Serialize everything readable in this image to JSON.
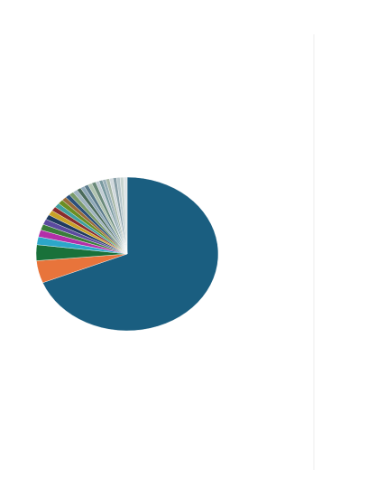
{
  "chart_data": {
    "type": "pie",
    "categories": [
      null,
      null,
      null,
      null,
      null,
      null,
      null,
      null,
      null,
      null,
      null,
      null,
      null,
      null,
      null,
      null,
      null,
      null,
      null,
      null,
      null,
      null,
      null,
      null,
      null,
      null,
      null,
      null,
      null,
      null
    ],
    "values": [
      66,
      4.5,
      3.2,
      1.6,
      1.4,
      1.2,
      1.1,
      1.0,
      1.0,
      0.9,
      0.9,
      0.9,
      0.8,
      0.8,
      0.8,
      0.8,
      0.7,
      0.7,
      0.7,
      0.7,
      0.7,
      0.6,
      0.6,
      0.6,
      0.6,
      0.6,
      0.6,
      0.6,
      0.6,
      0.6
    ],
    "colors": [
      "#1a5e80",
      "#e8743b",
      "#19713a",
      "#2ca7c9",
      "#b32fa8",
      "#3a7d3a",
      "#5b4a9e",
      "#1f3a60",
      "#c9a227",
      "#8a2c2c",
      "#41a0a0",
      "#6b8e23",
      "#9a6b3a",
      "#2b4f7a",
      "#7a9a6b",
      "#a0b4c0",
      "#4a6a5a",
      "#8fa8b8",
      "#5a7a8a",
      "#b0c4b0",
      "#6a8a7a",
      "#c0ccd4",
      "#7a9aa0",
      "#9ab0b8",
      "#a8b8a8",
      "#d0d8dc",
      "#8aa0a8",
      "#b8c8cc",
      "#c8d4d0",
      "#dde3e6"
    ]
  }
}
